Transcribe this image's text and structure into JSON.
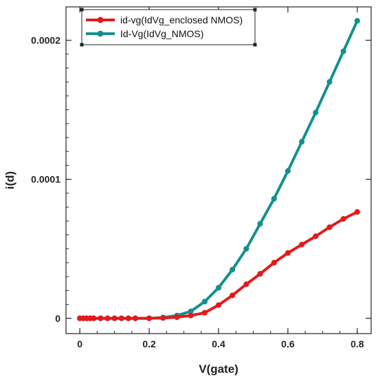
{
  "chart_data": {
    "type": "line",
    "title": "",
    "xlabel": "V(gate)",
    "ylabel": "i(d)",
    "xlim": [
      -0.04,
      0.84
    ],
    "ylim": [
      -1.1e-05,
      0.000224
    ],
    "x_ticks": [
      0,
      0.2,
      0.4,
      0.6,
      0.8
    ],
    "x_tick_labels": [
      "0",
      "0.2",
      "0.4",
      "0.6",
      "0.8"
    ],
    "y_ticks": [
      0,
      0.0001,
      0.0002
    ],
    "y_tick_labels": [
      "0",
      "0.0001",
      "0.0002"
    ],
    "grid": false,
    "legend_position": "top-left",
    "series": [
      {
        "name": "id-vg(IdVg_enclosed NMOS)",
        "color": "#e31a1c",
        "x": [
          0,
          0.01,
          0.02,
          0.03,
          0.04,
          0.06,
          0.08,
          0.1,
          0.12,
          0.14,
          0.16,
          0.2,
          0.24,
          0.28,
          0.32,
          0.36,
          0.4,
          0.44,
          0.48,
          0.52,
          0.56,
          0.6,
          0.64,
          0.68,
          0.72,
          0.76,
          0.8
        ],
        "y": [
          0,
          0,
          0,
          0,
          0,
          0,
          0,
          0,
          0,
          0,
          0,
          0,
          2e-07,
          8e-07,
          2e-06,
          4e-06,
          9.5e-06,
          1.65e-05,
          2.45e-05,
          3.2e-05,
          4e-05,
          4.7e-05,
          5.3e-05,
          5.9e-05,
          6.55e-05,
          7.15e-05,
          7.65e-05
        ]
      },
      {
        "name": "Id-Vg(IdVg_NMOS)",
        "color": "#14908d",
        "x": [
          0,
          0.01,
          0.02,
          0.03,
          0.04,
          0.06,
          0.08,
          0.1,
          0.12,
          0.14,
          0.16,
          0.2,
          0.24,
          0.28,
          0.32,
          0.36,
          0.4,
          0.44,
          0.48,
          0.52,
          0.56,
          0.6,
          0.64,
          0.68,
          0.72,
          0.76,
          0.8
        ],
        "y": [
          0,
          0,
          0,
          0,
          0,
          0,
          0,
          0,
          0,
          0,
          0,
          0,
          6e-07,
          2e-06,
          5e-06,
          1.2e-05,
          2.2e-05,
          3.5e-05,
          5e-05,
          6.8e-05,
          8.6e-05,
          0.000106,
          0.000127,
          0.000148,
          0.00017,
          0.000192,
          0.000214
        ]
      }
    ]
  }
}
